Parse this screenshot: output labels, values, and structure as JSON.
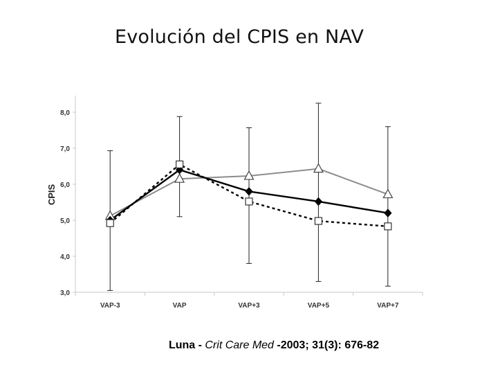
{
  "slide": {
    "title": "Evolución del CPIS en NAV",
    "citation_author": "Luna - ",
    "citation_journal": "Crit Care Med",
    "citation_rest": " -2003; 31(3): 676-82"
  },
  "chart_data": {
    "type": "line",
    "title": "Evolución del CPIS en NAV",
    "xlabel": "",
    "ylabel": "CPIS",
    "ylim": [
      3.0,
      8.0
    ],
    "yticks": [
      "3,0",
      "4,0",
      "5,0",
      "6,0",
      "7,0",
      "8,0"
    ],
    "categories": [
      "VAP-3",
      "VAP",
      "VAP+3",
      "VAP+5",
      "VAP+7"
    ],
    "grid": false,
    "series": [
      {
        "marker": "triangle",
        "line_style": "solid",
        "color": "#8c8c8c",
        "values": [
          5.12,
          6.15,
          6.23,
          6.43,
          5.72
        ],
        "error_low": [
          3.05,
          5.1,
          3.8,
          3.3,
          3.17
        ],
        "error_high": [
          6.93,
          7.88,
          7.57,
          8.25,
          7.6
        ]
      },
      {
        "marker": "diamond",
        "line_style": "solid",
        "color": "#000000",
        "values": [
          5.0,
          6.4,
          5.8,
          5.52,
          5.2
        ]
      },
      {
        "marker": "square",
        "line_style": "dashed",
        "color": "#000000",
        "values": [
          4.92,
          6.55,
          5.52,
          4.98,
          4.83
        ]
      }
    ]
  }
}
